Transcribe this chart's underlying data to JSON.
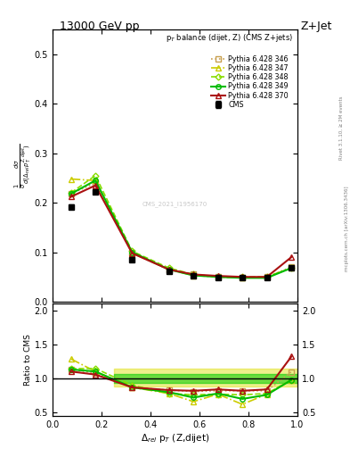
{
  "title_top": "13000 GeV pp",
  "title_right": "Z+Jet",
  "plot_label": "p$_T$ balance (dijet, Z) (CMS Z+jets)",
  "watermark": "CMS_2021_I1956170",
  "ylabel_main": "$\\frac{1}{\\sigma}\\frac{d\\sigma}{d(\\Delta_{rel}\\,p_T^{Z,dijet})}$",
  "ylabel_ratio": "Ratio to CMS",
  "xlabel": "$\\Delta_{rel}$ p$_T$ (Z,dijet)",
  "xlim": [
    0.0,
    1.0
  ],
  "ylim_main": [
    0.0,
    0.55
  ],
  "ylim_ratio": [
    0.45,
    2.1
  ],
  "cms_x": [
    0.075,
    0.175,
    0.325,
    0.475,
    0.575,
    0.675,
    0.775,
    0.875,
    0.975
  ],
  "cms_y": [
    0.192,
    0.222,
    0.085,
    0.062,
    0.052,
    0.048,
    0.048,
    0.048,
    0.068
  ],
  "cms_yerr": [
    0.005,
    0.004,
    0.003,
    0.002,
    0.002,
    0.002,
    0.002,
    0.002,
    0.003
  ],
  "p346_x": [
    0.075,
    0.175,
    0.325,
    0.475,
    0.575,
    0.675,
    0.775,
    0.875,
    0.975
  ],
  "p346_y": [
    0.218,
    0.24,
    0.1,
    0.065,
    0.055,
    0.05,
    0.048,
    0.05,
    0.07
  ],
  "p347_x": [
    0.075,
    0.175,
    0.325,
    0.475,
    0.575,
    0.675,
    0.775,
    0.875,
    0.975
  ],
  "p347_y": [
    0.248,
    0.245,
    0.098,
    0.065,
    0.053,
    0.05,
    0.048,
    0.05,
    0.068
  ],
  "p348_x": [
    0.075,
    0.175,
    0.325,
    0.475,
    0.575,
    0.675,
    0.775,
    0.875,
    0.975
  ],
  "p348_y": [
    0.22,
    0.255,
    0.102,
    0.068,
    0.055,
    0.05,
    0.05,
    0.05,
    0.068
  ],
  "p349_x": [
    0.075,
    0.175,
    0.325,
    0.475,
    0.575,
    0.675,
    0.775,
    0.875,
    0.975
  ],
  "p349_y": [
    0.218,
    0.245,
    0.1,
    0.065,
    0.053,
    0.05,
    0.048,
    0.048,
    0.068
  ],
  "p370_x": [
    0.075,
    0.175,
    0.325,
    0.475,
    0.575,
    0.675,
    0.775,
    0.875,
    0.975
  ],
  "p370_y": [
    0.212,
    0.235,
    0.098,
    0.065,
    0.055,
    0.052,
    0.05,
    0.05,
    0.09
  ],
  "ratio_346": [
    1.135,
    1.081,
    0.87,
    0.83,
    0.81,
    0.82,
    0.82,
    0.82,
    1.1
  ],
  "ratio_347": [
    1.29,
    1.104,
    0.87,
    0.78,
    0.66,
    0.77,
    0.62,
    0.77,
    0.98
  ],
  "ratio_348": [
    1.146,
    1.149,
    0.9,
    0.78,
    0.76,
    0.77,
    0.76,
    0.78,
    0.98
  ],
  "ratio_349": [
    1.135,
    1.104,
    0.87,
    0.8,
    0.72,
    0.78,
    0.7,
    0.76,
    0.98
  ],
  "ratio_370": [
    1.104,
    1.059,
    0.87,
    0.83,
    0.82,
    0.84,
    0.82,
    0.84,
    1.324
  ],
  "color_346": "#c8a050",
  "color_347": "#cccc00",
  "color_348": "#88dd00",
  "color_349": "#00bb00",
  "color_370": "#aa1111",
  "band1_color": "#dddd00",
  "band2_color": "#00cc00",
  "rivet_text": "Rivet 3.1.10, ≥ 2M events",
  "arxiv_text": "mcplots.cern.ch [arXiv:1306.3436]"
}
